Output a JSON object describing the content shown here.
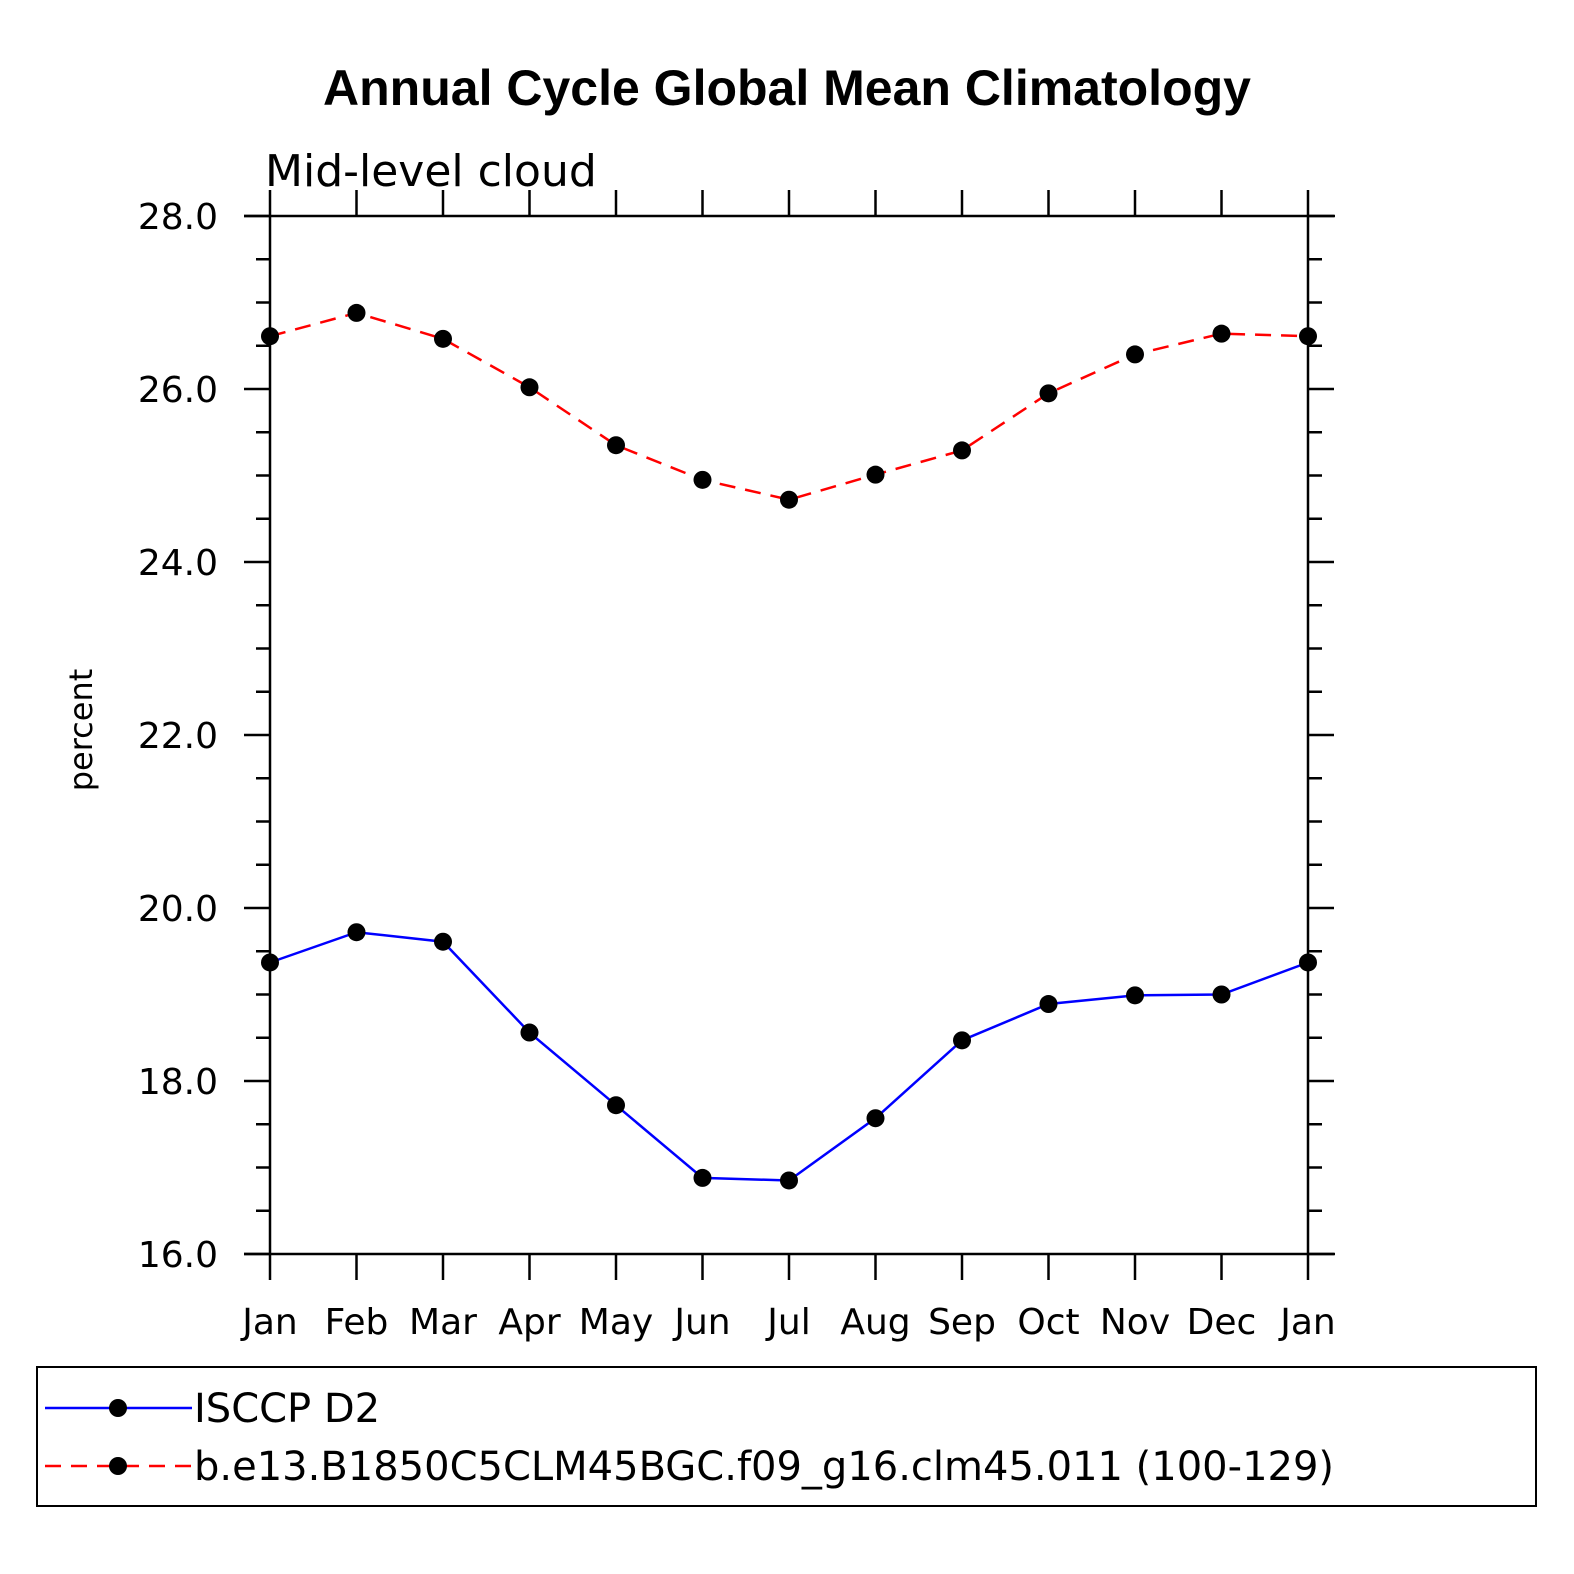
{
  "chart_data": {
    "type": "line",
    "title": "Annual Cycle Global Mean Climatology",
    "subtitle": "Mid-level cloud",
    "xlabel": "",
    "ylabel": "percent",
    "ylim": [
      16.0,
      28.0
    ],
    "yticks": [
      "16.0",
      "18.0",
      "20.0",
      "22.0",
      "24.0",
      "26.0",
      "28.0"
    ],
    "categories": [
      "Jan",
      "Feb",
      "Mar",
      "Apr",
      "May",
      "Jun",
      "Jul",
      "Aug",
      "Sep",
      "Oct",
      "Nov",
      "Dec",
      "Jan"
    ],
    "grid": false,
    "legend_position": "bottom",
    "series": [
      {
        "name": "ISCCP D2",
        "color": "#0000ff",
        "dash": "solid",
        "marker": "filled-circle",
        "values": [
          19.37,
          19.72,
          19.61,
          18.56,
          17.72,
          16.88,
          16.85,
          17.57,
          18.47,
          18.89,
          18.99,
          19.0,
          19.37
        ]
      },
      {
        "name": "b.e13.B1850C5CLM45BGC.f09_g16.clm45.011 (100-129)",
        "color": "#ff0000",
        "dash": "dashed",
        "marker": "filled-circle",
        "values": [
          26.61,
          26.88,
          26.58,
          26.02,
          25.35,
          24.95,
          24.72,
          25.01,
          25.29,
          25.95,
          26.4,
          26.64,
          26.61
        ]
      }
    ]
  }
}
